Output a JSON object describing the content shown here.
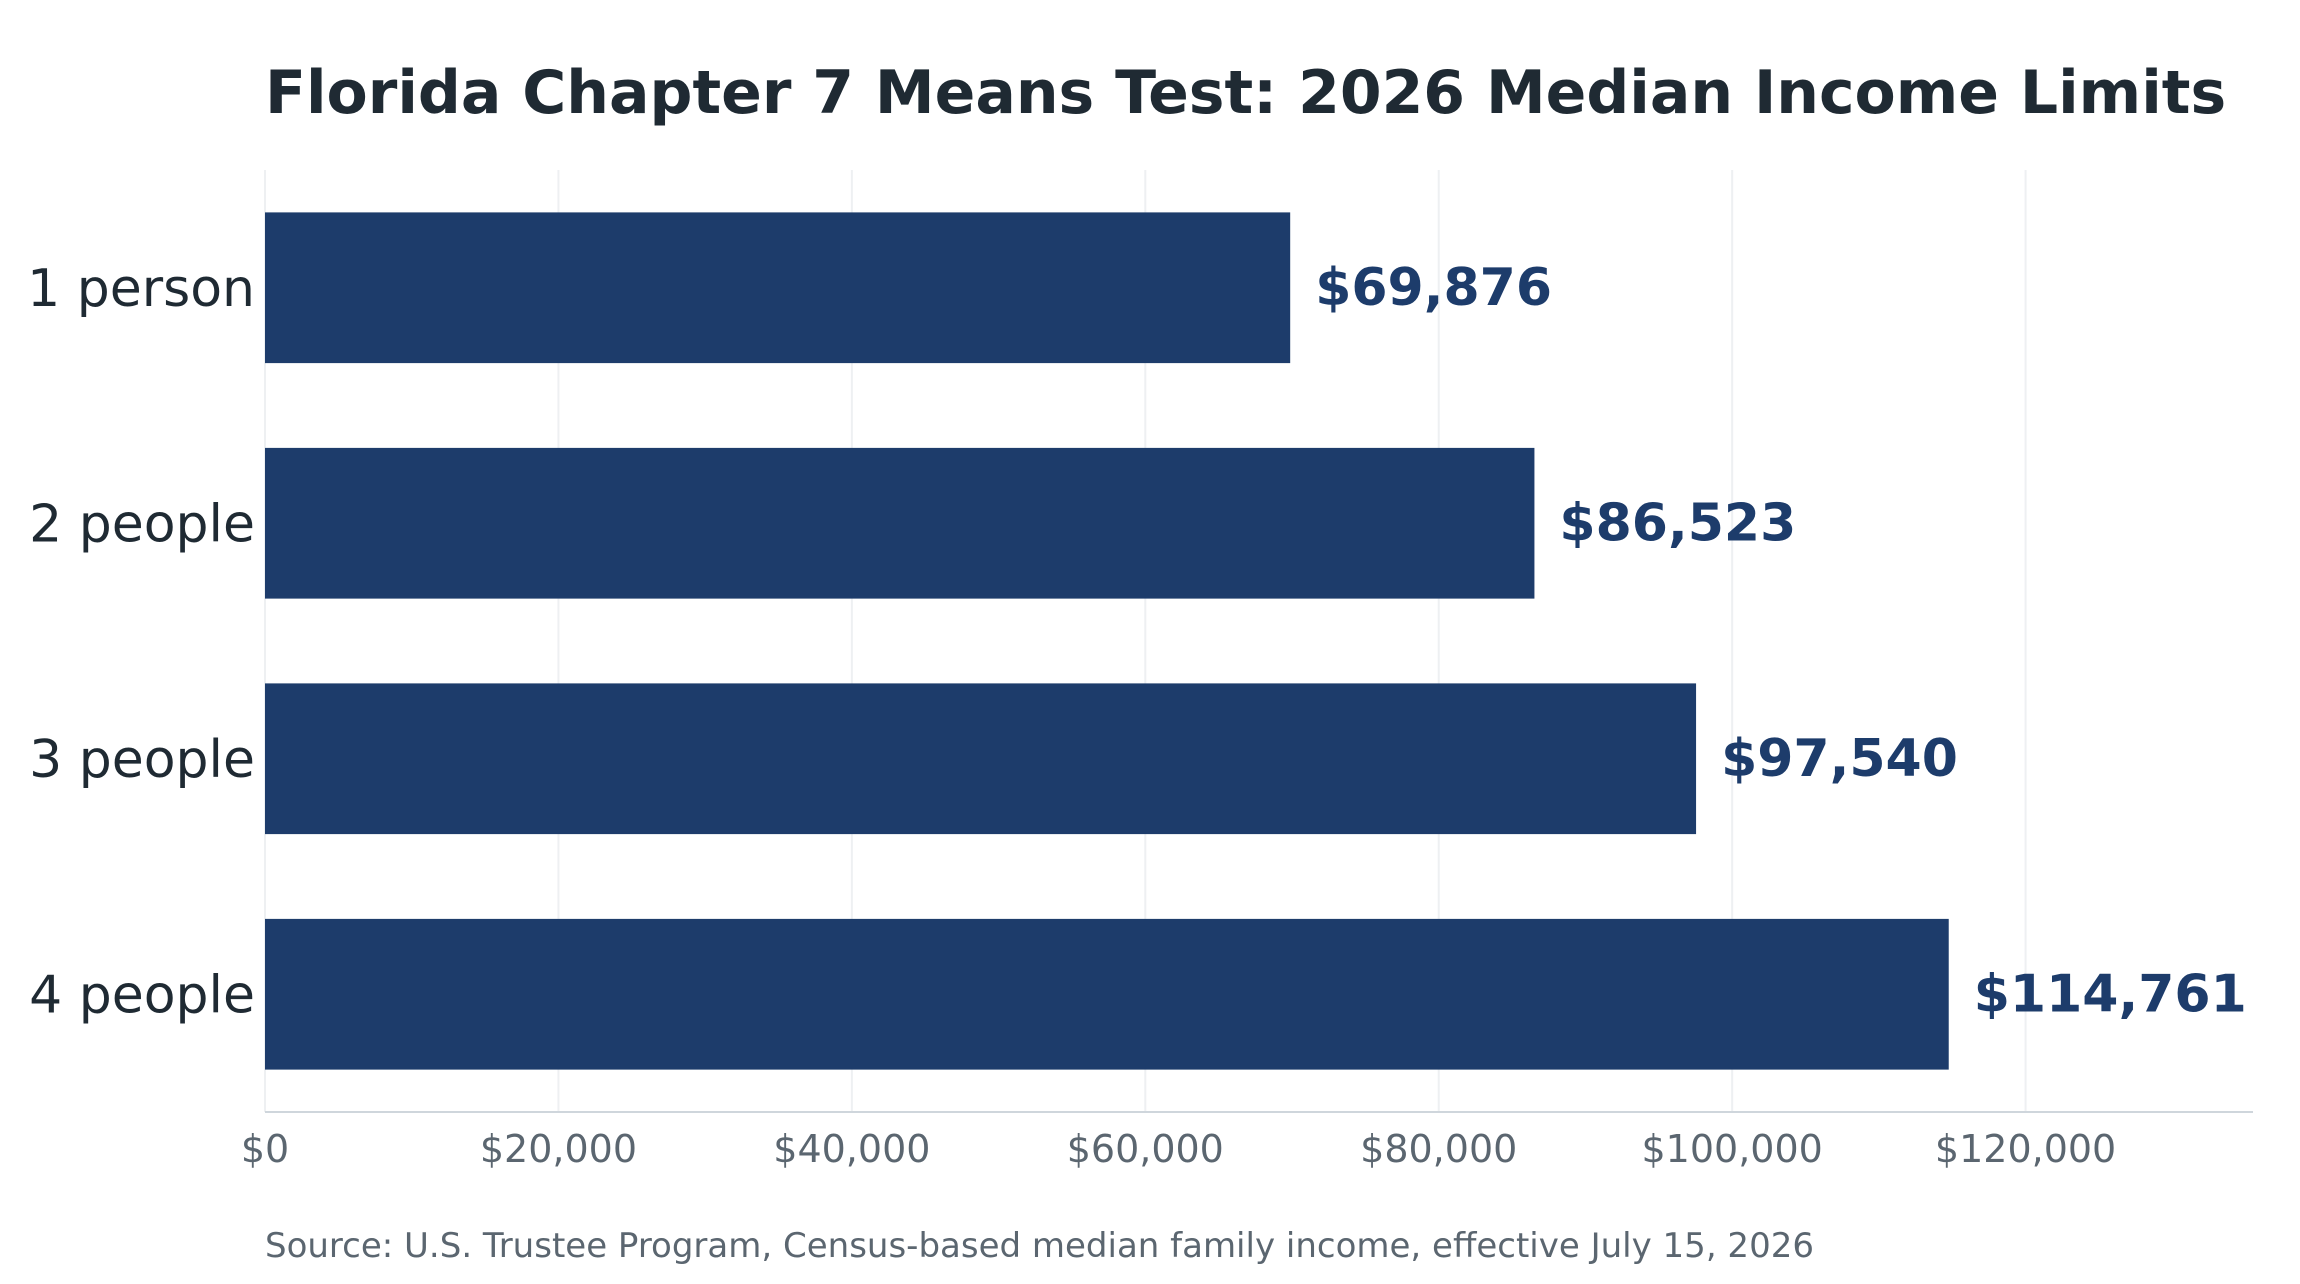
{
  "chart_data": {
    "type": "bar",
    "orientation": "horizontal",
    "title": "Florida Chapter 7 Means Test: 2026 Median Income Limits",
    "source": "Source: U.S. Trustee Program, Census-based median family income, effective July 15, 2026",
    "xlabel": "",
    "ylabel": "",
    "categories": [
      "1 person",
      "2 people",
      "3 people",
      "4 people"
    ],
    "values": [
      69876,
      86523,
      97540,
      114761
    ],
    "value_labels": [
      "$69,876",
      "$86,523",
      "$97,540",
      "$114,761"
    ],
    "xlim": [
      0,
      135500
    ],
    "xticks": [
      0,
      20000,
      40000,
      60000,
      80000,
      100000,
      120000
    ],
    "xtick_labels": [
      "$0",
      "$20,000",
      "$40,000",
      "$60,000",
      "$80,000",
      "$100,000",
      "$120,000"
    ],
    "grid": true,
    "legend": false,
    "colors": {
      "bar": "#1d3c6b",
      "value_label": "#1d3c6b",
      "title": "#1f2a33",
      "category_label": "#1f2a33",
      "tick_label": "#5b6670",
      "source": "#5b6670",
      "grid": "#eef0f2",
      "axis": "#cfd6dc"
    }
  }
}
